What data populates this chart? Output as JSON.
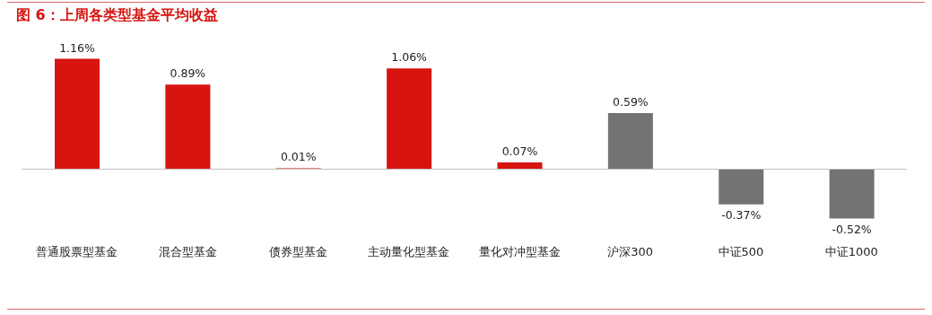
{
  "chart_data": {
    "type": "bar",
    "title": "图 6：上周各类型基金平均收益",
    "categories": [
      "普通股票型基金",
      "混合型基金",
      "债券型基金",
      "主动量化型基金",
      "量化对冲型基金",
      "沪深300",
      "中证500",
      "中证1000"
    ],
    "values": [
      1.16,
      0.89,
      0.01,
      1.06,
      0.07,
      0.59,
      -0.37,
      -0.52
    ],
    "colors": [
      "#d7140f",
      "#d7140f",
      "#d7140f",
      "#d7140f",
      "#d7140f",
      "#737373",
      "#737373",
      "#737373"
    ],
    "value_labels": [
      "1.16%",
      "0.89%",
      "0.01%",
      "1.06%",
      "0.07%",
      "0.59%",
      "-0.37%",
      "-0.52%"
    ],
    "ref_lines": [
      {
        "axis": "y",
        "value": 0,
        "color": "#bfbfbf"
      }
    ],
    "grid": false
  }
}
